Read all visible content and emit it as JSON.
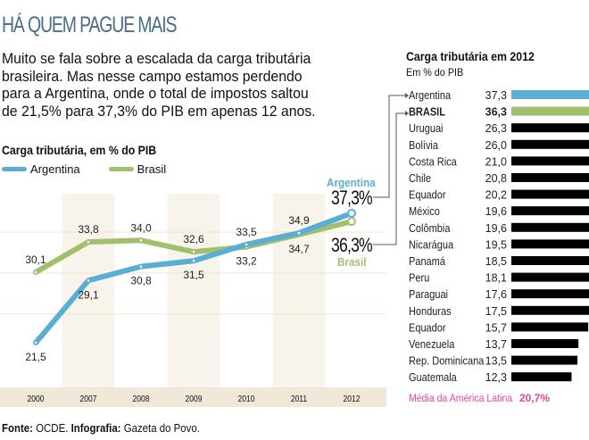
{
  "title": "HÁ QUEM PAGUE MAIS",
  "intro_lines": [
    "Muito se fala sobre a escalada da carga tributária",
    "brasileira. Mas nesse campo estamos perdendo",
    "para a Argentina, onde o total de impostos saltou",
    "de 21,5% para 37,3% do PIB em apenas 12 anos."
  ],
  "source": {
    "fonte_label": "Fonte:",
    "fonte_value": "OCDE.",
    "infografia_label": "Infografia:",
    "infografia_value": "Gazeta do Povo."
  },
  "colors": {
    "argentina": "#5aaed3",
    "brasil": "#a1c06d",
    "title": "#4a6f86",
    "average": "#e2479a",
    "other_bars": "#000000",
    "column_band": "#f8f4ec",
    "axis_band": "#efe8d8"
  },
  "callouts": {
    "argentina_label": "Argentina",
    "argentina_value": "37,3%",
    "brasil_label": "Brasil",
    "brasil_value": "36,3%"
  },
  "chart_data": [
    {
      "type": "line",
      "title": "Carga tributária, em % do PIB",
      "xlabel": "",
      "ylabel": "",
      "categories": [
        "2000",
        "2007",
        "2008",
        "2009",
        "2010",
        "2011",
        "2012"
      ],
      "series": [
        {
          "name": "Argentina",
          "values": [
            21.5,
            29.1,
            30.8,
            31.5,
            33.5,
            34.9,
            37.3
          ],
          "labels": [
            "21,5",
            "29,1",
            "30,8",
            "31,5",
            "33,5",
            "34,9",
            ""
          ]
        },
        {
          "name": "Brasil",
          "values": [
            30.1,
            33.8,
            34.0,
            32.6,
            33.2,
            34.7,
            36.3
          ],
          "labels": [
            "30,1",
            "33,8",
            "34,0",
            "32,6",
            "33,2",
            "34,7",
            ""
          ]
        }
      ],
      "legend": "top-left",
      "grid": true,
      "ylim": [
        15,
        40
      ]
    },
    {
      "type": "bar",
      "orientation": "horizontal",
      "title": "Carga tributária em 2012",
      "subtitle": "Em % do PIB",
      "categories": [
        "Argentina",
        "BRASIL",
        "Uruguai",
        "Bolívia",
        "Costa Rica",
        "Chile",
        "Equador",
        "México",
        "Colômbia",
        "Nicarágua",
        "Panamá",
        "Peru",
        "Paraguai",
        "Honduras",
        "Equador",
        "Venezuela",
        "Rep. Dominicana",
        "Guatemala"
      ],
      "values": [
        37.3,
        36.3,
        26.3,
        26.0,
        21.0,
        20.8,
        20.2,
        19.6,
        19.6,
        19.5,
        18.5,
        18.1,
        17.6,
        17.5,
        15.7,
        13.7,
        13.5,
        12.3
      ],
      "value_labels": [
        "37,3",
        "36,3",
        "26,3",
        "26,0",
        "21,0",
        "20,8",
        "20,2",
        "19,6",
        "19,6",
        "19,5",
        "18,5",
        "18,1",
        "17,6",
        "17,5",
        "15,7",
        "13,7",
        "13,5",
        "12,3"
      ],
      "highlight": {
        "Argentina": "argentina",
        "BRASIL": "brasil"
      },
      "reference_line": {
        "label": "Média da América Latina",
        "value": 20.7,
        "value_label": "20,7%"
      }
    }
  ]
}
